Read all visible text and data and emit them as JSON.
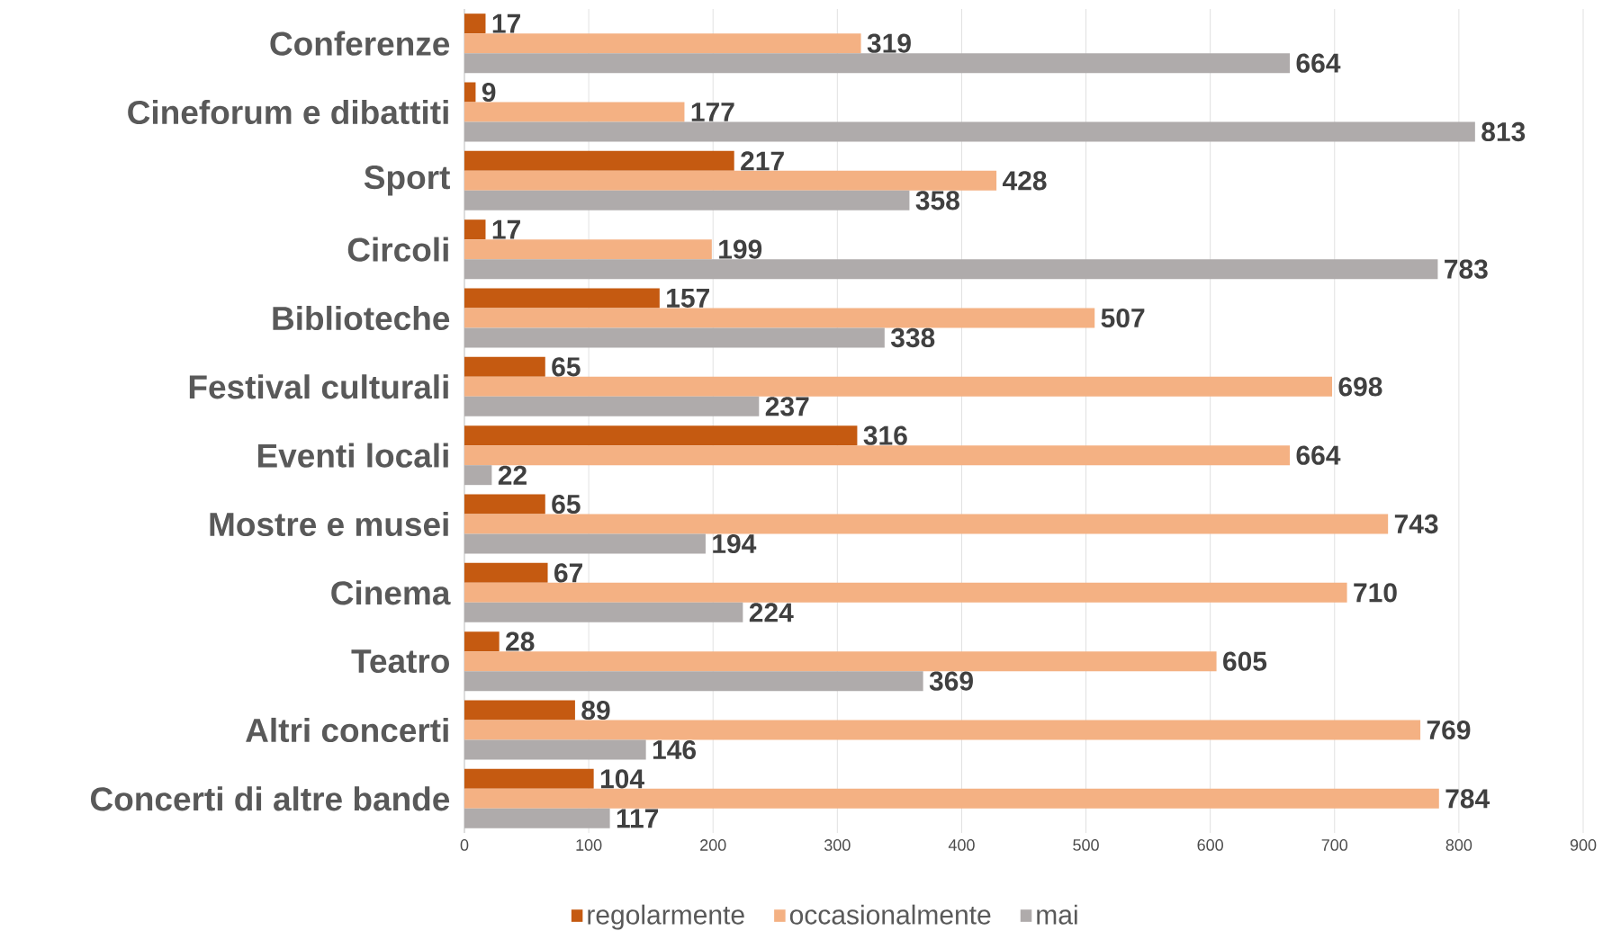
{
  "chart_data": {
    "type": "bar",
    "orientation": "horizontal",
    "categories": [
      "Conferenze",
      "Cineforum e dibattiti",
      "Sport",
      "Circoli",
      "Biblioteche",
      "Festival culturali",
      "Eventi locali",
      "Mostre e musei",
      "Cinema",
      "Teatro",
      "Altri concerti",
      "Concerti di altre bande"
    ],
    "series": [
      {
        "name": "regolarmente",
        "color": "#c55a11",
        "values": [
          17,
          9,
          217,
          17,
          157,
          65,
          316,
          65,
          67,
          28,
          89,
          104
        ]
      },
      {
        "name": "occasionalmente",
        "color": "#f4b183",
        "values": [
          319,
          177,
          428,
          199,
          507,
          698,
          664,
          743,
          710,
          605,
          769,
          784
        ]
      },
      {
        "name": "mai",
        "color": "#afabab",
        "values": [
          664,
          813,
          358,
          783,
          338,
          237,
          22,
          194,
          224,
          369,
          146,
          117
        ]
      }
    ],
    "xlim": [
      0,
      900
    ],
    "xticks": [
      0,
      100,
      200,
      300,
      400,
      500,
      600,
      700,
      800,
      900
    ],
    "grid": "x",
    "legend": "bottom",
    "data_labels": true
  }
}
